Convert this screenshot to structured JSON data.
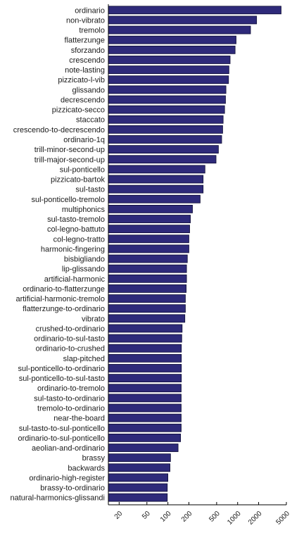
{
  "chart_data": {
    "type": "bar",
    "orientation": "horizontal",
    "x_scale": "log",
    "xlim": [
      14,
      5000
    ],
    "x_ticks": [
      20,
      50,
      100,
      200,
      500,
      1000,
      2000,
      5000
    ],
    "x_tick_labels": [
      "20",
      "50",
      "100",
      "200",
      "500",
      "1000",
      "2000",
      "5000"
    ],
    "bar_color": "#2e2a7a",
    "categories": [
      "ordinario",
      "non-vibrato",
      "tremolo",
      "flatterzunge",
      "sforzando",
      "crescendo",
      "note-lasting",
      "pizzicato-l-vib",
      "glissando",
      "decrescendo",
      "pizzicato-secco",
      "staccato",
      "crescendo-to-decrescendo",
      "ordinario-1q",
      "trill-minor-second-up",
      "trill-major-second-up",
      "sul-ponticello",
      "pizzicato-bartok",
      "sul-tasto",
      "sul-ponticello-tremolo",
      "multiphonics",
      "sul-tasto-tremolo",
      "col-legno-battuto",
      "col-legno-tratto",
      "harmonic-fingering",
      "bisbigliando",
      "lip-glissando",
      "artificial-harmonic",
      "ordinario-to-flatterzunge",
      "artificial-harmonic-tremolo",
      "flatterzunge-to-ordinario",
      "vibrato",
      "crushed-to-ordinario",
      "ordinario-to-sul-tasto",
      "ordinario-to-crushed",
      "slap-pitched",
      "sul-ponticello-to-ordinario",
      "sul-ponticello-to-sul-tasto",
      "ordinario-to-tremolo",
      "sul-tasto-to-ordinario",
      "tremolo-to-ordinario",
      "near-the-board",
      "sul-tasto-to-sul-ponticello",
      "ordinario-to-sul-ponticello",
      "aeolian-and-ordinario",
      "brassy",
      "backwards",
      "ordinario-high-register",
      "brassy-to-ordinario",
      "natural-harmonics-glissandi"
    ],
    "values": [
      4200,
      1870,
      1530,
      950,
      920,
      780,
      750,
      740,
      680,
      670,
      650,
      620,
      610,
      590,
      530,
      490,
      340,
      320,
      320,
      290,
      225,
      210,
      205,
      200,
      200,
      190,
      185,
      185,
      183,
      178,
      178,
      175,
      160,
      158,
      156,
      156,
      156,
      156,
      155,
      155,
      155,
      155,
      155,
      152,
      140,
      109,
      107,
      100,
      98,
      98
    ]
  }
}
